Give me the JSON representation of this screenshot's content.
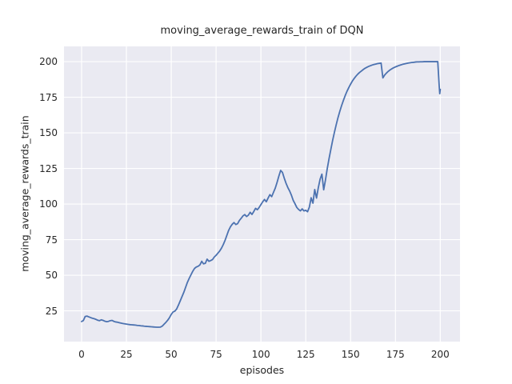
{
  "figure": {
    "background": "#ffffff",
    "text_color": "#262626"
  },
  "chart_data": {
    "type": "line",
    "title": "moving_average_rewards_train of DQN",
    "xlabel": "episodes",
    "ylabel": "moving_average_rewards_train",
    "x_ticks": [
      0,
      25,
      50,
      75,
      100,
      125,
      150,
      175,
      200
    ],
    "y_ticks": [
      25,
      50,
      75,
      100,
      125,
      150,
      175,
      200
    ],
    "xlim": [
      -9.8,
      211.0
    ],
    "ylim": [
      3.4,
      210.7
    ],
    "grid": true,
    "grid_color": "#ffffff",
    "legend": false,
    "plot_background": "#eaeaf2",
    "line_color": "#4c72b0",
    "line_width": 1.8,
    "series": [
      {
        "name": "moving_average_rewards_train",
        "points": [
          [
            0,
            17.5
          ],
          [
            1,
            18.2
          ],
          [
            2,
            21.0
          ],
          [
            3,
            21.3
          ],
          [
            4,
            20.8
          ],
          [
            5,
            20.3
          ],
          [
            6,
            19.8
          ],
          [
            7,
            19.5
          ],
          [
            8,
            19.0
          ],
          [
            9,
            18.4
          ],
          [
            10,
            18.1
          ],
          [
            11,
            18.7
          ],
          [
            12,
            18.3
          ],
          [
            13,
            17.7
          ],
          [
            14,
            17.4
          ],
          [
            15,
            17.6
          ],
          [
            16,
            18.1
          ],
          [
            17,
            18.3
          ],
          [
            18,
            17.6
          ],
          [
            19,
            17.2
          ],
          [
            20,
            17.0
          ],
          [
            21,
            16.7
          ],
          [
            22,
            16.4
          ],
          [
            23,
            16.1
          ],
          [
            24,
            15.9
          ],
          [
            25,
            15.7
          ],
          [
            26,
            15.5
          ],
          [
            27,
            15.3
          ],
          [
            28,
            15.2
          ],
          [
            29,
            15.1
          ],
          [
            30,
            15.0
          ],
          [
            31,
            14.8
          ],
          [
            32,
            14.7
          ],
          [
            33,
            14.5
          ],
          [
            34,
            14.4
          ],
          [
            35,
            14.2
          ],
          [
            36,
            14.1
          ],
          [
            37,
            14.0
          ],
          [
            38,
            13.9
          ],
          [
            39,
            13.8
          ],
          [
            40,
            13.7
          ],
          [
            41,
            13.6
          ],
          [
            42,
            13.5
          ],
          [
            43,
            13.5
          ],
          [
            44,
            13.6
          ],
          [
            45,
            14.3
          ],
          [
            46,
            15.6
          ],
          [
            47,
            16.9
          ],
          [
            48,
            18.4
          ],
          [
            49,
            20.2
          ],
          [
            50,
            22.5
          ],
          [
            51,
            24.2
          ],
          [
            52,
            24.8
          ],
          [
            53,
            26.3
          ],
          [
            54,
            29.0
          ],
          [
            55,
            32.0
          ],
          [
            56,
            35.0
          ],
          [
            57,
            38.0
          ],
          [
            58,
            41.5
          ],
          [
            59,
            45.0
          ],
          [
            60,
            47.8
          ],
          [
            61,
            50.3
          ],
          [
            62,
            52.8
          ],
          [
            63,
            54.8
          ],
          [
            64,
            55.8
          ],
          [
            65,
            56.3
          ],
          [
            66,
            57.3
          ],
          [
            67,
            59.8
          ],
          [
            68,
            58.0
          ],
          [
            69,
            58.4
          ],
          [
            70,
            61.3
          ],
          [
            71,
            59.8
          ],
          [
            72,
            60.3
          ],
          [
            73,
            61.0
          ],
          [
            74,
            62.8
          ],
          [
            75,
            64.0
          ],
          [
            76,
            65.5
          ],
          [
            77,
            67.0
          ],
          [
            78,
            69.0
          ],
          [
            79,
            71.5
          ],
          [
            80,
            74.5
          ],
          [
            81,
            78.0
          ],
          [
            82,
            81.5
          ],
          [
            83,
            84.0
          ],
          [
            84,
            85.8
          ],
          [
            85,
            87.0
          ],
          [
            86,
            85.6
          ],
          [
            87,
            86.2
          ],
          [
            88,
            88.5
          ],
          [
            89,
            90.0
          ],
          [
            90,
            91.7
          ],
          [
            91,
            92.6
          ],
          [
            92,
            91.2
          ],
          [
            93,
            92.2
          ],
          [
            94,
            94.2
          ],
          [
            95,
            92.7
          ],
          [
            96,
            94.7
          ],
          [
            97,
            97.0
          ],
          [
            98,
            96.0
          ],
          [
            99,
            97.6
          ],
          [
            100,
            99.6
          ],
          [
            101,
            101.6
          ],
          [
            102,
            103.2
          ],
          [
            103,
            101.6
          ],
          [
            104,
            104.2
          ],
          [
            105,
            106.6
          ],
          [
            106,
            105.2
          ],
          [
            107,
            108.2
          ],
          [
            108,
            111.2
          ],
          [
            109,
            115.2
          ],
          [
            110,
            119.6
          ],
          [
            111,
            123.6
          ],
          [
            112,
            122.2
          ],
          [
            113,
            118.2
          ],
          [
            114,
            114.6
          ],
          [
            115,
            111.6
          ],
          [
            116,
            109.2
          ],
          [
            117,
            106.2
          ],
          [
            118,
            102.6
          ],
          [
            119,
            100.2
          ],
          [
            120,
            97.6
          ],
          [
            121,
            96.2
          ],
          [
            122,
            95.2
          ],
          [
            123,
            96.6
          ],
          [
            124,
            95.2
          ],
          [
            125,
            95.6
          ],
          [
            126,
            94.6
          ],
          [
            127,
            97.8
          ],
          [
            128,
            104.4
          ],
          [
            129,
            100.6
          ],
          [
            130,
            110.2
          ],
          [
            131,
            104.2
          ],
          [
            132,
            111.5
          ],
          [
            133,
            117.5
          ],
          [
            134,
            121.0
          ],
          [
            135,
            110.0
          ],
          [
            136,
            117.0
          ],
          [
            137,
            125.0
          ],
          [
            138,
            132.0
          ],
          [
            139,
            138.5
          ],
          [
            140,
            144.8
          ],
          [
            141,
            150.5
          ],
          [
            142,
            155.8
          ],
          [
            143,
            160.8
          ],
          [
            144,
            165.2
          ],
          [
            145,
            169.2
          ],
          [
            146,
            172.8
          ],
          [
            147,
            176.2
          ],
          [
            148,
            179.2
          ],
          [
            149,
            181.8
          ],
          [
            150,
            184.2
          ],
          [
            151,
            186.4
          ],
          [
            152,
            188.2
          ],
          [
            153,
            189.8
          ],
          [
            154,
            191.2
          ],
          [
            155,
            192.4
          ],
          [
            156,
            193.4
          ],
          [
            157,
            194.4
          ],
          [
            158,
            195.3
          ],
          [
            159,
            196.0
          ],
          [
            160,
            196.6
          ],
          [
            161,
            197.1
          ],
          [
            162,
            197.6
          ],
          [
            163,
            198.0
          ],
          [
            164,
            198.3
          ],
          [
            165,
            198.6
          ],
          [
            166,
            198.8
          ],
          [
            167,
            199.0
          ],
          [
            168,
            188.6
          ],
          [
            169,
            190.6
          ],
          [
            170,
            192.0
          ],
          [
            171,
            193.2
          ],
          [
            172,
            194.2
          ],
          [
            173,
            195.0
          ],
          [
            174,
            195.7
          ],
          [
            175,
            196.3
          ],
          [
            176,
            196.8
          ],
          [
            177,
            197.3
          ],
          [
            178,
            197.7
          ],
          [
            179,
            198.1
          ],
          [
            180,
            198.4
          ],
          [
            181,
            198.7
          ],
          [
            182,
            199.0
          ],
          [
            183,
            199.2
          ],
          [
            184,
            199.4
          ],
          [
            185,
            199.5
          ],
          [
            186,
            199.7
          ],
          [
            187,
            199.8
          ],
          [
            188,
            199.8
          ],
          [
            189,
            199.9
          ],
          [
            190,
            199.9
          ],
          [
            191,
            200.0
          ],
          [
            192,
            200.0
          ],
          [
            193,
            200.0
          ],
          [
            194,
            200.0
          ],
          [
            195,
            200.0
          ],
          [
            196,
            200.0
          ],
          [
            197,
            200.0
          ],
          [
            198,
            200.0
          ],
          [
            198.6,
            200.0
          ],
          [
            199.4,
            183.0
          ],
          [
            199.7,
            177.5
          ],
          [
            200,
            180.5
          ]
        ]
      }
    ]
  }
}
